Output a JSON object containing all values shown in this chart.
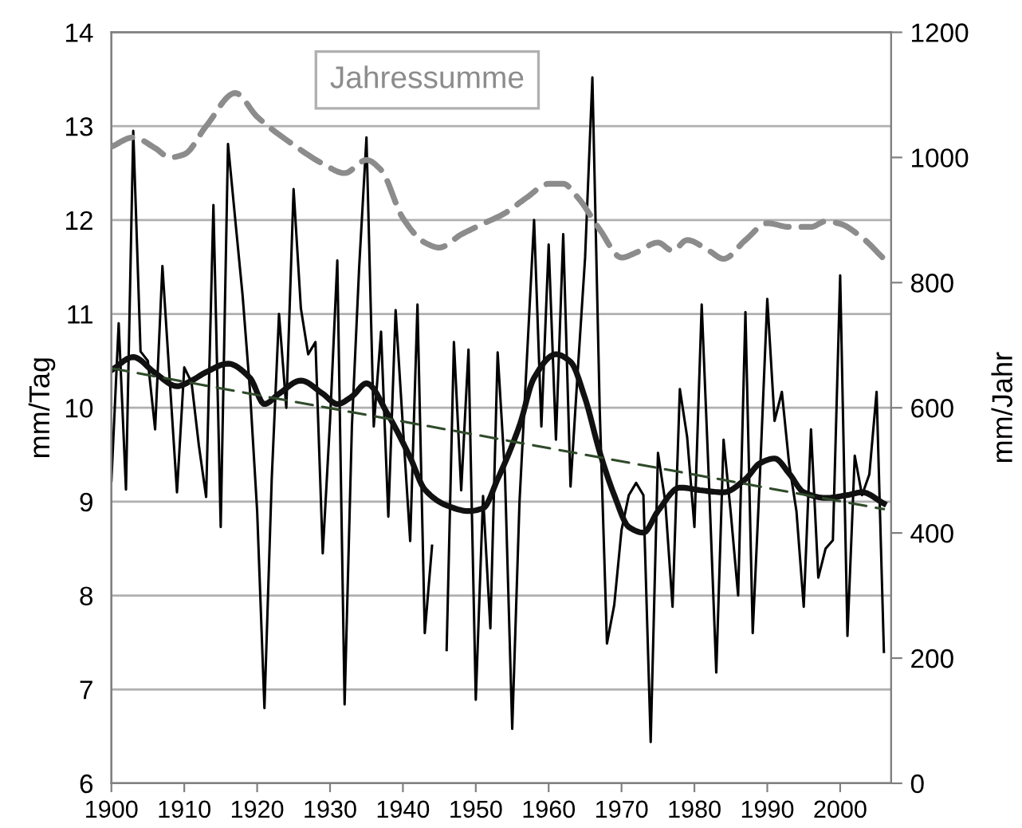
{
  "chart_data": {
    "type": "line",
    "ylabel": "mm/Tag",
    "y2label": "mm/Jahr",
    "x": [
      1900,
      1901,
      1902,
      1903,
      1904,
      1905,
      1906,
      1907,
      1908,
      1909,
      1910,
      1911,
      1912,
      1913,
      1914,
      1915,
      1916,
      1917,
      1918,
      1919,
      1920,
      1921,
      1922,
      1923,
      1924,
      1925,
      1926,
      1927,
      1928,
      1929,
      1930,
      1931,
      1932,
      1933,
      1934,
      1935,
      1936,
      1937,
      1938,
      1939,
      1940,
      1941,
      1942,
      1943,
      1944,
      1945,
      1946,
      1947,
      1948,
      1949,
      1950,
      1951,
      1952,
      1953,
      1954,
      1955,
      1956,
      1957,
      1958,
      1959,
      1960,
      1961,
      1962,
      1963,
      1964,
      1965,
      1966,
      1967,
      1968,
      1969,
      1970,
      1971,
      1972,
      1973,
      1974,
      1975,
      1976,
      1977,
      1978,
      1979,
      1980,
      1981,
      1982,
      1983,
      1984,
      1985,
      1986,
      1987,
      1988,
      1989,
      1990,
      1991,
      1992,
      1993,
      1994,
      1995,
      1996,
      1997,
      1998,
      1999,
      2000,
      2001,
      2002,
      2003,
      2004,
      2005,
      2006
    ],
    "series": [
      {
        "color": "#000000",
        "line_style": "solid",
        "values": [
          9.22,
          10.9,
          9.13,
          12.95,
          10.6,
          10.5,
          9.77,
          11.51,
          10.3,
          9.1,
          10.43,
          10.27,
          9.6,
          9.05,
          12.16,
          8.73,
          12.81,
          12.0,
          11.2,
          10.2,
          8.9,
          6.8,
          9.24,
          11.0,
          10.0,
          12.33,
          11.06,
          10.57,
          10.7,
          8.45,
          9.86,
          11.57,
          6.84,
          9.8,
          11.5,
          12.88,
          9.8,
          10.81,
          8.84,
          11.04,
          9.8,
          8.58,
          11.1,
          7.6,
          8.53,
          null,
          7.42,
          10.7,
          9.12,
          10.62,
          6.89,
          9.06,
          7.65,
          10.59,
          9.3,
          6.58,
          9.0,
          10.5,
          12.0,
          9.8,
          11.74,
          9.66,
          11.85,
          9.16,
          10.4,
          11.6,
          13.52,
          10.0,
          7.49,
          7.9,
          8.7,
          9.07,
          9.2,
          9.07,
          6.44,
          9.52,
          9.0,
          7.88,
          10.2,
          9.69,
          8.73,
          11.1,
          9.2,
          7.18,
          9.66,
          8.87,
          8.0,
          11.02,
          7.6,
          9.3,
          11.16,
          9.86,
          10.17,
          9.4,
          8.9,
          7.88,
          9.77,
          8.19,
          8.5,
          8.59,
          11.41,
          7.57,
          9.49,
          9.07,
          9.29,
          10.17,
          7.4
        ]
      },
      {
        "color": "#111111",
        "line_style": "solid",
        "x": [
          1900,
          1903,
          1906,
          1909,
          1911,
          1913,
          1916,
          1919,
          1921,
          1923,
          1926,
          1929,
          1931,
          1933,
          1935,
          1938,
          1941,
          1943,
          1946,
          1949,
          1951,
          1953,
          1956,
          1958,
          1961,
          1963,
          1965,
          1967,
          1969,
          1971,
          1973,
          1975,
          1978,
          1981,
          1984,
          1987,
          1989,
          1991,
          1993,
          1995,
          1998,
          2001,
          2003,
          2006
        ],
        "values": [
          10.4,
          10.54,
          10.37,
          10.23,
          10.29,
          10.38,
          10.47,
          10.32,
          10.04,
          10.15,
          10.29,
          10.15,
          10.04,
          10.12,
          10.26,
          9.92,
          9.47,
          9.13,
          8.96,
          8.9,
          8.93,
          9.24,
          9.81,
          10.32,
          10.57,
          10.49,
          10.1,
          9.53,
          9.07,
          8.73,
          8.67,
          8.9,
          9.15,
          9.12,
          9.1,
          9.24,
          9.41,
          9.46,
          9.3,
          9.1,
          9.04,
          9.07,
          9.1,
          8.98
        ]
      },
      {
        "color": "#2f4a2a",
        "line_style": "dashed",
        "x": [
          1900,
          2006
        ],
        "values": [
          10.42,
          8.92
        ]
      },
      {
        "name": "Jahressumme",
        "color": "#8c8c8c",
        "line_style": "dashed",
        "axis": "y2",
        "x": [
          1900,
          1903,
          1906,
          1908,
          1910,
          1913,
          1917,
          1920,
          1925,
          1929,
          1932,
          1935,
          1937,
          1940,
          1943,
          1945,
          1948,
          1951,
          1954,
          1957,
          1960,
          1962,
          1964,
          1967,
          1970,
          1972,
          1975,
          1977,
          1979,
          1982,
          1984,
          1987,
          1990,
          1993,
          1996,
          1998,
          2000,
          2003,
          2006
        ],
        "values": [
          1017,
          1032,
          1015,
          1000,
          1005,
          1050,
          1103,
          1065,
          1020,
          990,
          975,
          996,
          980,
          903,
          864,
          856,
          877,
          894,
          911,
          936,
          958,
          958,
          936,
          885,
          840,
          848,
          864,
          851,
          868,
          851,
          838,
          868,
          895,
          889,
          889,
          898,
          894,
          872,
          838
        ]
      }
    ],
    "xlim": [
      1900,
      2007
    ],
    "xticks": [
      1900,
      1910,
      1920,
      1930,
      1940,
      1950,
      1960,
      1970,
      1980,
      1990,
      2000
    ],
    "ylim": [
      6,
      14
    ],
    "yticks": [
      6,
      7,
      8,
      9,
      10,
      11,
      12,
      13,
      14
    ],
    "y2lim": [
      0,
      1200
    ],
    "y2ticks": [
      0,
      200,
      400,
      600,
      800,
      1000,
      1200
    ],
    "grid": "y",
    "legend": "top",
    "marker": "none"
  }
}
